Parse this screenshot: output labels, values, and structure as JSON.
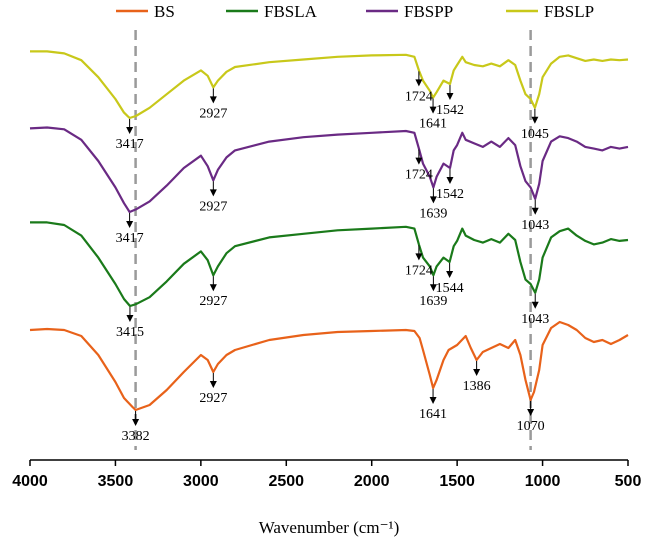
{
  "chart_data": {
    "type": "line",
    "title": "",
    "xlabel": "Wavenumber (cm⁻¹)",
    "ylabel": "",
    "xlim": [
      4000,
      500
    ],
    "x_reversed": true,
    "xticks": [
      4000,
      3500,
      3000,
      2500,
      2000,
      1500,
      1000,
      500
    ],
    "legend_position": "top",
    "reference_lines": [
      3382,
      1070
    ],
    "series": [
      {
        "name": "BS",
        "color": "#e8621a",
        "offset": 0,
        "points": [
          [
            4000,
            0.8
          ],
          [
            3900,
            0.81
          ],
          [
            3800,
            0.8
          ],
          [
            3700,
            0.74
          ],
          [
            3600,
            0.55
          ],
          [
            3500,
            0.28
          ],
          [
            3450,
            0.12
          ],
          [
            3400,
            0.03
          ],
          [
            3382,
            0.0
          ],
          [
            3300,
            0.05
          ],
          [
            3200,
            0.2
          ],
          [
            3100,
            0.38
          ],
          [
            3000,
            0.55
          ],
          [
            2960,
            0.5
          ],
          [
            2927,
            0.38
          ],
          [
            2900,
            0.46
          ],
          [
            2850,
            0.55
          ],
          [
            2800,
            0.6
          ],
          [
            2600,
            0.7
          ],
          [
            2400,
            0.75
          ],
          [
            2200,
            0.78
          ],
          [
            2000,
            0.79
          ],
          [
            1800,
            0.8
          ],
          [
            1750,
            0.79
          ],
          [
            1720,
            0.72
          ],
          [
            1700,
            0.6
          ],
          [
            1660,
            0.35
          ],
          [
            1641,
            0.22
          ],
          [
            1620,
            0.3
          ],
          [
            1580,
            0.5
          ],
          [
            1550,
            0.6
          ],
          [
            1500,
            0.65
          ],
          [
            1450,
            0.74
          ],
          [
            1420,
            0.62
          ],
          [
            1386,
            0.5
          ],
          [
            1350,
            0.58
          ],
          [
            1300,
            0.62
          ],
          [
            1250,
            0.66
          ],
          [
            1200,
            0.62
          ],
          [
            1160,
            0.7
          ],
          [
            1130,
            0.55
          ],
          [
            1100,
            0.3
          ],
          [
            1070,
            0.1
          ],
          [
            1050,
            0.18
          ],
          [
            1020,
            0.4
          ],
          [
            1000,
            0.65
          ],
          [
            950,
            0.82
          ],
          [
            900,
            0.88
          ],
          [
            850,
            0.85
          ],
          [
            800,
            0.8
          ],
          [
            750,
            0.72
          ],
          [
            700,
            0.68
          ],
          [
            650,
            0.7
          ],
          [
            600,
            0.66
          ],
          [
            550,
            0.7
          ],
          [
            500,
            0.75
          ]
        ]
      },
      {
        "name": "FBSLA",
        "color": "#1a7a1a",
        "offset": 1,
        "points": [
          [
            4000,
            0.95
          ],
          [
            3900,
            0.95
          ],
          [
            3800,
            0.92
          ],
          [
            3700,
            0.8
          ],
          [
            3600,
            0.55
          ],
          [
            3500,
            0.25
          ],
          [
            3450,
            0.08
          ],
          [
            3415,
            0.0
          ],
          [
            3380,
            0.02
          ],
          [
            3300,
            0.1
          ],
          [
            3200,
            0.28
          ],
          [
            3100,
            0.48
          ],
          [
            3000,
            0.62
          ],
          [
            2960,
            0.52
          ],
          [
            2927,
            0.35
          ],
          [
            2900,
            0.45
          ],
          [
            2850,
            0.6
          ],
          [
            2800,
            0.68
          ],
          [
            2600,
            0.78
          ],
          [
            2400,
            0.82
          ],
          [
            2200,
            0.86
          ],
          [
            2000,
            0.88
          ],
          [
            1800,
            0.9
          ],
          [
            1750,
            0.88
          ],
          [
            1724,
            0.7
          ],
          [
            1700,
            0.55
          ],
          [
            1660,
            0.45
          ],
          [
            1639,
            0.35
          ],
          [
            1620,
            0.45
          ],
          [
            1580,
            0.55
          ],
          [
            1544,
            0.5
          ],
          [
            1520,
            0.68
          ],
          [
            1500,
            0.74
          ],
          [
            1470,
            0.88
          ],
          [
            1450,
            0.8
          ],
          [
            1400,
            0.75
          ],
          [
            1350,
            0.72
          ],
          [
            1300,
            0.76
          ],
          [
            1250,
            0.72
          ],
          [
            1200,
            0.82
          ],
          [
            1160,
            0.75
          ],
          [
            1130,
            0.5
          ],
          [
            1100,
            0.3
          ],
          [
            1070,
            0.25
          ],
          [
            1043,
            0.15
          ],
          [
            1020,
            0.3
          ],
          [
            1000,
            0.55
          ],
          [
            950,
            0.78
          ],
          [
            900,
            0.85
          ],
          [
            850,
            0.88
          ],
          [
            800,
            0.8
          ],
          [
            750,
            0.74
          ],
          [
            700,
            0.7
          ],
          [
            650,
            0.72
          ],
          [
            600,
            0.76
          ],
          [
            550,
            0.74
          ],
          [
            500,
            0.75
          ]
        ]
      },
      {
        "name": "FBSPP",
        "color": "#6a2a84",
        "offset": 2,
        "points": [
          [
            4000,
            0.95
          ],
          [
            3900,
            0.96
          ],
          [
            3800,
            0.94
          ],
          [
            3700,
            0.82
          ],
          [
            3600,
            0.58
          ],
          [
            3500,
            0.28
          ],
          [
            3450,
            0.1
          ],
          [
            3417,
            0.0
          ],
          [
            3380,
            0.03
          ],
          [
            3300,
            0.12
          ],
          [
            3200,
            0.3
          ],
          [
            3100,
            0.5
          ],
          [
            3000,
            0.64
          ],
          [
            2960,
            0.52
          ],
          [
            2927,
            0.36
          ],
          [
            2900,
            0.48
          ],
          [
            2850,
            0.62
          ],
          [
            2800,
            0.7
          ],
          [
            2600,
            0.8
          ],
          [
            2400,
            0.85
          ],
          [
            2200,
            0.88
          ],
          [
            2000,
            0.9
          ],
          [
            1800,
            0.92
          ],
          [
            1750,
            0.9
          ],
          [
            1724,
            0.72
          ],
          [
            1700,
            0.55
          ],
          [
            1660,
            0.4
          ],
          [
            1639,
            0.28
          ],
          [
            1620,
            0.4
          ],
          [
            1580,
            0.55
          ],
          [
            1542,
            0.5
          ],
          [
            1520,
            0.7
          ],
          [
            1500,
            0.76
          ],
          [
            1470,
            0.9
          ],
          [
            1450,
            0.82
          ],
          [
            1400,
            0.78
          ],
          [
            1350,
            0.74
          ],
          [
            1300,
            0.8
          ],
          [
            1250,
            0.74
          ],
          [
            1200,
            0.84
          ],
          [
            1160,
            0.76
          ],
          [
            1130,
            0.52
          ],
          [
            1100,
            0.35
          ],
          [
            1070,
            0.28
          ],
          [
            1043,
            0.15
          ],
          [
            1020,
            0.32
          ],
          [
            1000,
            0.58
          ],
          [
            950,
            0.8
          ],
          [
            900,
            0.86
          ],
          [
            850,
            0.84
          ],
          [
            800,
            0.8
          ],
          [
            750,
            0.74
          ],
          [
            700,
            0.72
          ],
          [
            650,
            0.7
          ],
          [
            600,
            0.74
          ],
          [
            550,
            0.72
          ],
          [
            500,
            0.74
          ]
        ]
      },
      {
        "name": "FBSLP",
        "color": "#c8c81a",
        "offset": 3,
        "points": [
          [
            4000,
            0.98
          ],
          [
            3900,
            0.98
          ],
          [
            3800,
            0.95
          ],
          [
            3700,
            0.85
          ],
          [
            3600,
            0.6
          ],
          [
            3500,
            0.28
          ],
          [
            3450,
            0.08
          ],
          [
            3417,
            0.0
          ],
          [
            3380,
            0.03
          ],
          [
            3300,
            0.15
          ],
          [
            3200,
            0.35
          ],
          [
            3100,
            0.55
          ],
          [
            3000,
            0.7
          ],
          [
            2960,
            0.62
          ],
          [
            2927,
            0.45
          ],
          [
            2900,
            0.55
          ],
          [
            2850,
            0.68
          ],
          [
            2800,
            0.75
          ],
          [
            2600,
            0.82
          ],
          [
            2400,
            0.86
          ],
          [
            2200,
            0.9
          ],
          [
            2000,
            0.92
          ],
          [
            1800,
            0.93
          ],
          [
            1750,
            0.9
          ],
          [
            1724,
            0.7
          ],
          [
            1700,
            0.55
          ],
          [
            1660,
            0.4
          ],
          [
            1641,
            0.3
          ],
          [
            1620,
            0.38
          ],
          [
            1580,
            0.55
          ],
          [
            1542,
            0.5
          ],
          [
            1520,
            0.7
          ],
          [
            1500,
            0.78
          ],
          [
            1470,
            0.9
          ],
          [
            1450,
            0.82
          ],
          [
            1400,
            0.78
          ],
          [
            1350,
            0.76
          ],
          [
            1300,
            0.8
          ],
          [
            1250,
            0.76
          ],
          [
            1200,
            0.85
          ],
          [
            1160,
            0.78
          ],
          [
            1130,
            0.55
          ],
          [
            1100,
            0.35
          ],
          [
            1070,
            0.28
          ],
          [
            1045,
            0.15
          ],
          [
            1020,
            0.35
          ],
          [
            1000,
            0.6
          ],
          [
            950,
            0.8
          ],
          [
            900,
            0.9
          ],
          [
            850,
            0.92
          ],
          [
            800,
            0.88
          ],
          [
            750,
            0.84
          ],
          [
            700,
            0.86
          ],
          [
            650,
            0.84
          ],
          [
            600,
            0.86
          ],
          [
            550,
            0.85
          ],
          [
            500,
            0.86
          ]
        ]
      }
    ],
    "annotations": [
      {
        "series": "BS",
        "x": 3382,
        "label": "3382"
      },
      {
        "series": "BS",
        "x": 2927,
        "label": "2927"
      },
      {
        "series": "BS",
        "x": 1641,
        "label": "1641"
      },
      {
        "series": "BS",
        "x": 1386,
        "label": "1386"
      },
      {
        "series": "BS",
        "x": 1070,
        "label": "1070"
      },
      {
        "series": "FBSLA",
        "x": 3415,
        "label": "3415"
      },
      {
        "series": "FBSLA",
        "x": 2927,
        "label": "2927"
      },
      {
        "series": "FBSLA",
        "x": 1724,
        "label": "1724"
      },
      {
        "series": "FBSLA",
        "x": 1639,
        "label": "1639"
      },
      {
        "series": "FBSLA",
        "x": 1544,
        "label": "1544"
      },
      {
        "series": "FBSLA",
        "x": 1043,
        "label": "1043"
      },
      {
        "series": "FBSPP",
        "x": 3417,
        "label": "3417"
      },
      {
        "series": "FBSPP",
        "x": 2927,
        "label": "2927"
      },
      {
        "series": "FBSPP",
        "x": 1724,
        "label": "1724"
      },
      {
        "series": "FBSPP",
        "x": 1639,
        "label": "1639"
      },
      {
        "series": "FBSPP",
        "x": 1542,
        "label": "1542"
      },
      {
        "series": "FBSPP",
        "x": 1043,
        "label": "1043"
      },
      {
        "series": "FBSLP",
        "x": 3417,
        "label": "3417"
      },
      {
        "series": "FBSLP",
        "x": 2927,
        "label": "2927"
      },
      {
        "series": "FBSLP",
        "x": 1724,
        "label": "1724"
      },
      {
        "series": "FBSLP",
        "x": 1641,
        "label": "1641"
      },
      {
        "series": "FBSLP",
        "x": 1542,
        "label": "1542"
      },
      {
        "series": "FBSLP",
        "x": 1045,
        "label": "1045"
      }
    ]
  }
}
